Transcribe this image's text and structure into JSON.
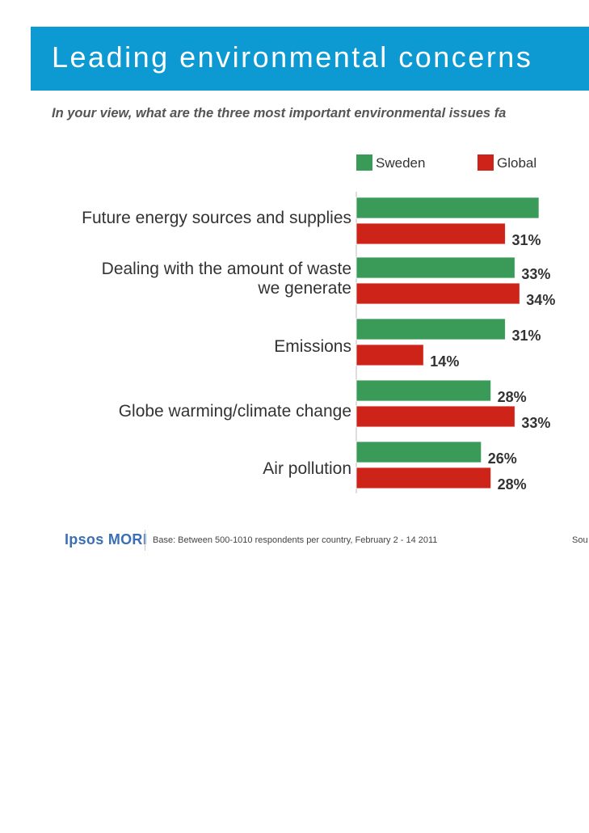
{
  "header": {
    "title": "Leading environmental concerns",
    "question": "In your view, what are the three most important environmental issues fa"
  },
  "chart_data": {
    "type": "bar",
    "orientation": "horizontal",
    "title": "Leading environmental concerns",
    "categories": [
      [
        "Future energy sources and supplies"
      ],
      [
        "Dealing with the amount of waste",
        "we generate"
      ],
      [
        "Emissions"
      ],
      [
        "Globe warming/climate change"
      ],
      [
        "Air pollution"
      ]
    ],
    "series": [
      {
        "name": "Sweden",
        "color": "#3a9a57",
        "values": [
          38,
          33,
          31,
          28,
          26
        ],
        "labels": [
          "",
          "33%",
          "31%",
          "28%",
          "26%"
        ]
      },
      {
        "name": "Global",
        "color": "#cd2319",
        "values": [
          31,
          34,
          14,
          33,
          28
        ],
        "labels": [
          "31%",
          "34%",
          "14%",
          "33%",
          "28%"
        ]
      }
    ],
    "xlim": [
      0,
      40
    ],
    "legend_position": "top"
  },
  "footer": {
    "logo": "Ipsos MORI",
    "base": "Base: Between 500-1010 respondents per country, February 2 - 14 2011",
    "source": "Sou"
  }
}
